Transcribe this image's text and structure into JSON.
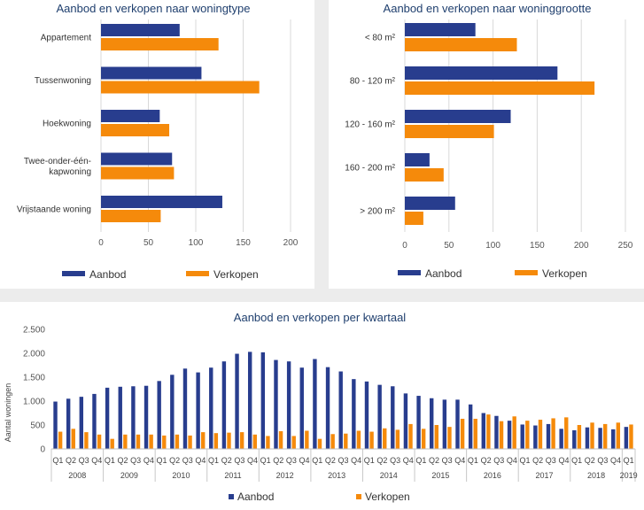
{
  "colors": {
    "aanbod": "#283d8e",
    "verkopen": "#f58a0b",
    "title": "#1f3f6e"
  },
  "chart_data": [
    {
      "id": "woningtype",
      "type": "bar",
      "orientation": "horizontal",
      "title": "Aanbod en verkopen naar woningtype",
      "categories": [
        "Appartement",
        "Tussenwoning",
        "Hoekwoning",
        "Twee-onder-één-kapwoning",
        "Vrijstaande woning"
      ],
      "category_lines": [
        [
          "Appartement"
        ],
        [
          "Tussenwoning"
        ],
        [
          "Hoekwoning"
        ],
        [
          "Twee-onder-één-",
          "kapwoning"
        ],
        [
          "Vrijstaande woning"
        ]
      ],
      "series": [
        {
          "name": "Aanbod",
          "values": [
            83,
            106,
            62,
            75,
            128
          ]
        },
        {
          "name": "Verkopen",
          "values": [
            124,
            167,
            72,
            77,
            63
          ]
        }
      ],
      "xlim": [
        0,
        200
      ],
      "xticks": [
        0,
        50,
        100,
        150,
        200
      ],
      "xtick_labels": [
        "0",
        "50",
        "100",
        "150",
        "200"
      ],
      "grid": true,
      "legend": [
        "Aanbod",
        "Verkopen"
      ]
    },
    {
      "id": "woninggrootte",
      "type": "bar",
      "orientation": "horizontal",
      "title": "Aanbod en verkopen naar woninggrootte",
      "categories": [
        "< 80 m²",
        "80 - 120 m²",
        "120 - 160 m²",
        "160 - 200 m²",
        "> 200 m²"
      ],
      "category_lines": [
        [
          "< 80 m²"
        ],
        [
          "80 - 120 m²"
        ],
        [
          "120 - 160 m²"
        ],
        [
          "160 - 200 m²"
        ],
        [
          "> 200 m²"
        ]
      ],
      "series": [
        {
          "name": "Aanbod",
          "values": [
            80,
            173,
            120,
            28,
            57
          ]
        },
        {
          "name": "Verkopen",
          "values": [
            127,
            215,
            101,
            44,
            21
          ]
        }
      ],
      "xlim": [
        0,
        250
      ],
      "xticks": [
        0,
        50,
        100,
        150,
        200,
        250
      ],
      "xtick_labels": [
        "0",
        "50",
        "100",
        "150",
        "200",
        "250"
      ],
      "grid": true,
      "legend": [
        "Aanbod",
        "Verkopen"
      ]
    },
    {
      "id": "kwartaal",
      "type": "bar",
      "orientation": "vertical",
      "title": "Aanbod en verkopen per kwartaal",
      "ylabel": "Aantal woningen",
      "ylim": [
        0,
        2500
      ],
      "yticks": [
        0,
        500,
        1000,
        1500,
        2000,
        2500
      ],
      "ytick_labels": [
        "0",
        "500",
        "1.000",
        "1.500",
        "2.000",
        "2.500"
      ],
      "years": [
        "2008",
        "2009",
        "2010",
        "2011",
        "2012",
        "2013",
        "2014",
        "2015",
        "2016",
        "2017",
        "2018",
        "2019"
      ],
      "quarters": [
        "Q1",
        "Q2",
        "Q3",
        "Q4"
      ],
      "series": [
        {
          "name": "Aanbod",
          "values": [
            990,
            1050,
            1090,
            1150,
            1280,
            1300,
            1310,
            1320,
            1420,
            1550,
            1680,
            1600,
            1700,
            1830,
            1990,
            2030,
            2020,
            1860,
            1830,
            1700,
            1880,
            1710,
            1620,
            1460,
            1410,
            1340,
            1310,
            1160,
            1110,
            1060,
            1030,
            1030,
            930,
            750,
            690,
            590,
            510,
            490,
            520,
            420,
            390,
            450,
            440,
            410,
            460
          ]
        },
        {
          "name": "Verkopen",
          "values": [
            360,
            420,
            350,
            300,
            210,
            300,
            300,
            300,
            280,
            300,
            280,
            350,
            330,
            340,
            350,
            300,
            270,
            370,
            270,
            380,
            210,
            310,
            320,
            380,
            360,
            430,
            400,
            520,
            420,
            500,
            460,
            630,
            630,
            720,
            580,
            680,
            590,
            610,
            640,
            660,
            500,
            550,
            520,
            550,
            510
          ]
        }
      ],
      "grid": false,
      "legend": [
        "Aanbod",
        "Verkopen"
      ]
    }
  ]
}
